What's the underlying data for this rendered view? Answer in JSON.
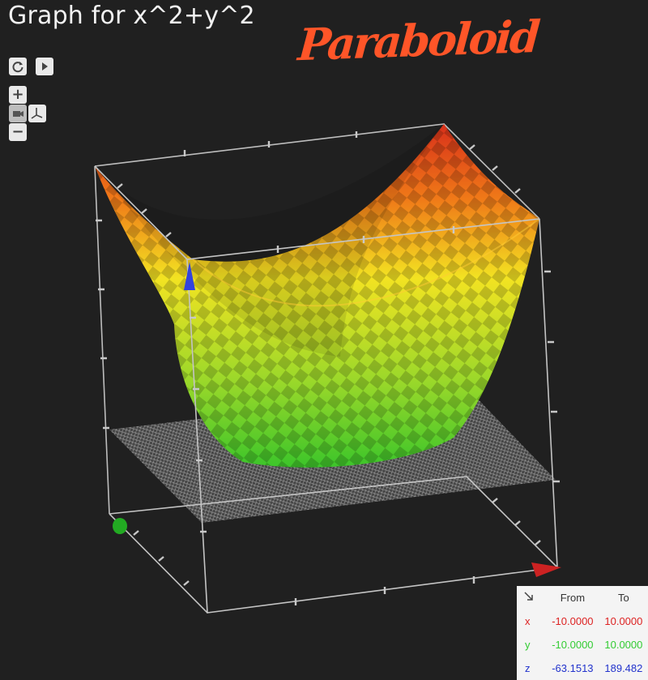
{
  "title": "Graph for x^2+y^2",
  "annotation": "Paraboloid",
  "controls": {
    "reset_icon": "refresh-icon",
    "play_icon": "play-icon",
    "zoom_in_label": "+",
    "zoom_out_label": "−",
    "camera_icon": "camera-icon",
    "axes_icon": "axes-icon"
  },
  "range_panel": {
    "corner_icon": "arrow-down-right-icon",
    "from_header": "From",
    "to_header": "To",
    "rows": [
      {
        "axis": "x",
        "from": "-10.0000",
        "to": "10.0000",
        "color": "#dd2222"
      },
      {
        "axis": "y",
        "from": "-10.0000",
        "to": "10.0000",
        "color": "#33cc33"
      },
      {
        "axis": "z",
        "from": "-63.1513",
        "to": "189.482",
        "color": "#2233cc"
      }
    ]
  },
  "colors": {
    "background": "#202020",
    "frame": "#bdbdbd",
    "x_axis": "#cc2222",
    "y_axis": "#22aa22",
    "z_axis": "#3344dd",
    "surface_low": "#44cc22",
    "surface_mid": "#eeee22",
    "surface_high": "#dd3311"
  }
}
